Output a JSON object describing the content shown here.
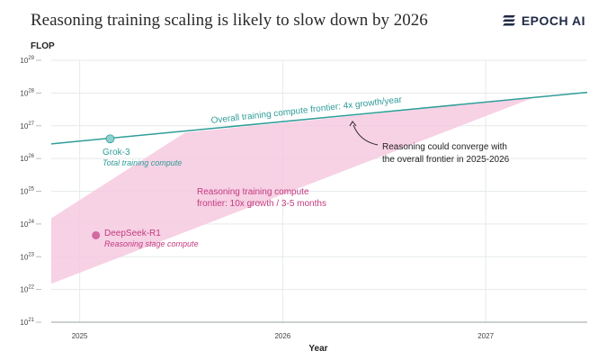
{
  "header": {
    "title": "Reasoning training scaling is likely to slow down by 2026",
    "brand": "EPOCH AI",
    "brand_icon": "epoch-logo-icon"
  },
  "colors": {
    "frontier_line": "#2f9d99",
    "reasoning_band": "#f6c9df",
    "reasoning_text": "#c23a7e",
    "grok_point": "#8fd0cf",
    "deepseek_point": "#d16aa0",
    "grid": "#e6eaea"
  },
  "chart_data": {
    "type": "line",
    "title": "Reasoning training scaling is likely to slow down by 2026",
    "ylabel": "FLOP",
    "xlabel": "Year",
    "y_scale": "log",
    "ylim": [
      1e+21,
      1e+29
    ],
    "xlim": [
      2024.86,
      2027.5
    ],
    "grid": true,
    "x_ticks": [
      {
        "value": 2025,
        "label": "2025"
      },
      {
        "value": 2026,
        "label": "2026"
      },
      {
        "value": 2027,
        "label": "2027"
      }
    ],
    "y_ticks": [
      {
        "value": 1e+21,
        "base": "10",
        "exp": "21"
      },
      {
        "value": 1e+22,
        "base": "10",
        "exp": "22"
      },
      {
        "value": 1e+23,
        "base": "10",
        "exp": "23"
      },
      {
        "value": 1e+24,
        "base": "10",
        "exp": "24"
      },
      {
        "value": 1e+25,
        "base": "10",
        "exp": "25"
      },
      {
        "value": 1e+26,
        "base": "10",
        "exp": "26"
      },
      {
        "value": 1e+27,
        "base": "10",
        "exp": "27"
      },
      {
        "value": 1e+28,
        "base": "10",
        "exp": "28"
      },
      {
        "value": 1e+29,
        "base": "10",
        "exp": "29"
      }
    ],
    "series": [
      {
        "name": "Overall training compute frontier: 4x growth/year",
        "kind": "line",
        "points": [
          {
            "x": 2024.86,
            "y": 2.8e+26
          },
          {
            "x": 2027.5,
            "y": 1.05e+28
          }
        ]
      },
      {
        "name": "Reasoning training compute frontier: 10x growth / 3-5 months",
        "kind": "band",
        "polygon": [
          {
            "x": 2024.86,
            "y": 1.5e+22
          },
          {
            "x": 2024.86,
            "y": 1.5e+24
          },
          {
            "x": 2025.52,
            "y": 6.2e+26
          },
          {
            "x": 2027.23,
            "y": 7e+27
          },
          {
            "x": 2027.23,
            "y": 7e+27
          }
        ]
      }
    ],
    "points": [
      {
        "label": "Grok-3",
        "sublabel": "Total training compute",
        "x": 2025.15,
        "y": 4e+26
      },
      {
        "label": "DeepSeek-R1",
        "sublabel": "Reasoning stage compute",
        "x": 2025.08,
        "y": 4.5e+23
      }
    ],
    "annotations": {
      "frontier_label": "Overall training compute frontier: 4x growth/year",
      "reasoning_label_line1": "Reasoning training compute",
      "reasoning_label_line2": "frontier: 10x growth / 3-5 months",
      "converge_line1": "Reasoning could converge with",
      "converge_line2": "the overall frontier in 2025-2026"
    }
  }
}
